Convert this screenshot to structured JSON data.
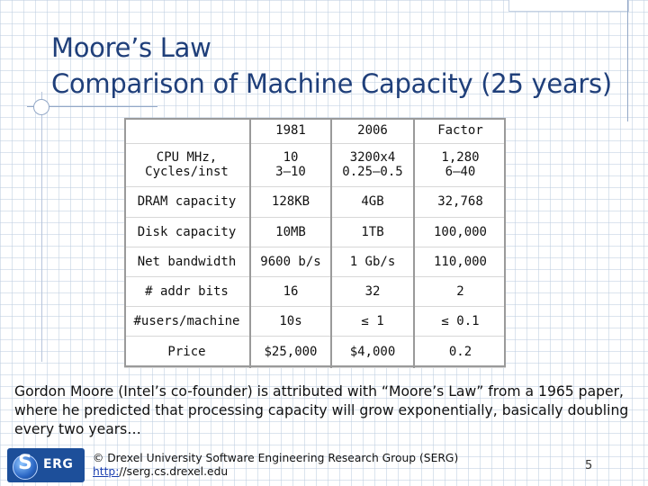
{
  "title": {
    "line1": "Moore’s Law",
    "line2": "Comparison of Machine Capacity (25 years)"
  },
  "table": {
    "headers": [
      "",
      "1981",
      "2006",
      "Factor"
    ],
    "rows": [
      {
        "label": [
          "CPU MHz,",
          "Cycles/inst"
        ],
        "c1981": [
          "10",
          "3—10"
        ],
        "c2006": [
          "3200x4",
          "0.25—0.5"
        ],
        "factor": [
          "1,280",
          "6—40"
        ]
      },
      {
        "label": [
          "DRAM capacity"
        ],
        "c1981": [
          "128KB"
        ],
        "c2006": [
          "4GB"
        ],
        "factor": [
          "32,768"
        ]
      },
      {
        "label": [
          "Disk capacity"
        ],
        "c1981": [
          "10MB"
        ],
        "c2006": [
          "1TB"
        ],
        "factor": [
          "100,000"
        ]
      },
      {
        "label": [
          "Net bandwidth"
        ],
        "c1981": [
          "9600 b/s"
        ],
        "c2006": [
          "1 Gb/s"
        ],
        "factor": [
          "110,000"
        ]
      },
      {
        "label": [
          "# addr bits"
        ],
        "c1981": [
          "16"
        ],
        "c2006": [
          "32"
        ],
        "factor": [
          "2"
        ]
      },
      {
        "label": [
          "#users/machine"
        ],
        "c1981": [
          "10s"
        ],
        "c2006": [
          "≤ 1"
        ],
        "factor": [
          "≤ 0.1"
        ]
      },
      {
        "label": [
          "Price"
        ],
        "c1981": [
          "$25,000"
        ],
        "c2006": [
          "$4,000"
        ],
        "factor": [
          "0.2"
        ]
      }
    ]
  },
  "body_text": "Gordon Moore (Intel’s co-founder) is attributed with “Moore’s Law” from a 1965 paper, where he predicted that processing capacity will grow exponentially, basically doubling every two years…",
  "footer": {
    "logo_text": "SERG",
    "logo_s": "S",
    "logo_erg": "ERG",
    "credit_line": "© Drexel University Software Engineering Research Group (SERG)",
    "link_prefix": "http:",
    "link_rest": "//serg.cs.drexel.edu",
    "page_number": "5"
  },
  "colors": {
    "title": "#1f3f7a",
    "logo_bg": "#1d4f9a",
    "link": "#1b3fb0"
  }
}
